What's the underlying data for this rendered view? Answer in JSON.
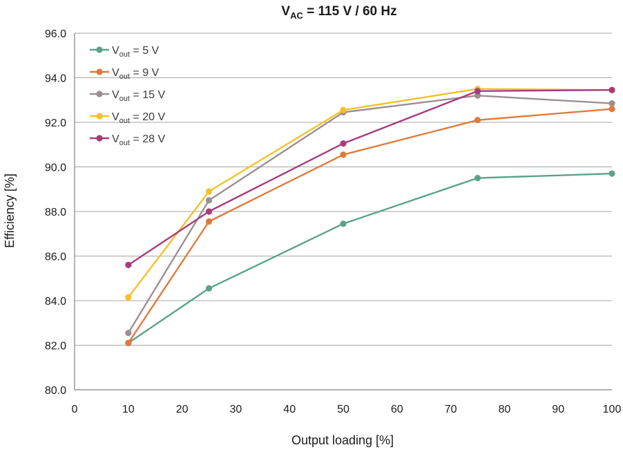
{
  "chart_data": {
    "type": "line",
    "title": {
      "main": "V",
      "sub": "AC",
      "rest": " = 115 V / 60 Hz"
    },
    "xlabel": "Output loading [%]",
    "ylabel": "Efficiency [%]",
    "xlim": [
      0,
      100
    ],
    "ylim": [
      80,
      96
    ],
    "xticks": [
      0,
      10,
      20,
      30,
      40,
      50,
      60,
      70,
      80,
      90,
      100
    ],
    "yticks": [
      "80.0",
      "82.0",
      "84.0",
      "86.0",
      "88.0",
      "90.0",
      "92.0",
      "94.0",
      "96.0"
    ],
    "grid": true,
    "legend_position": "top-left",
    "x": [
      10,
      25,
      50,
      75,
      100
    ],
    "series": [
      {
        "name": "Vout = 5 V",
        "prefix": "V",
        "sub": "out",
        "suffix": " = 5 V",
        "color": "#5aa28a",
        "values": [
          82.1,
          84.55,
          87.45,
          89.5,
          89.7
        ]
      },
      {
        "name": "Vout = 9 V",
        "prefix": "V",
        "sub": "out",
        "suffix": " = 9 V",
        "color": "#e07a3c",
        "values": [
          82.1,
          87.55,
          90.55,
          92.1,
          92.6
        ]
      },
      {
        "name": "Vout = 15 V",
        "prefix": "V",
        "sub": "out",
        "suffix": " = 15 V",
        "color": "#9c8f91",
        "values": [
          82.55,
          88.5,
          92.45,
          93.2,
          92.85
        ]
      },
      {
        "name": "Vout = 20 V",
        "prefix": "V",
        "sub": "out",
        "suffix": " = 20 V",
        "color": "#f3c12a",
        "values": [
          84.15,
          88.9,
          92.55,
          93.5,
          93.45
        ]
      },
      {
        "name": "Vout = 28 V",
        "prefix": "V",
        "sub": "out",
        "suffix": " = 28 V",
        "color": "#a93b7d",
        "values": [
          85.6,
          88.0,
          91.05,
          93.4,
          93.45
        ]
      }
    ]
  }
}
